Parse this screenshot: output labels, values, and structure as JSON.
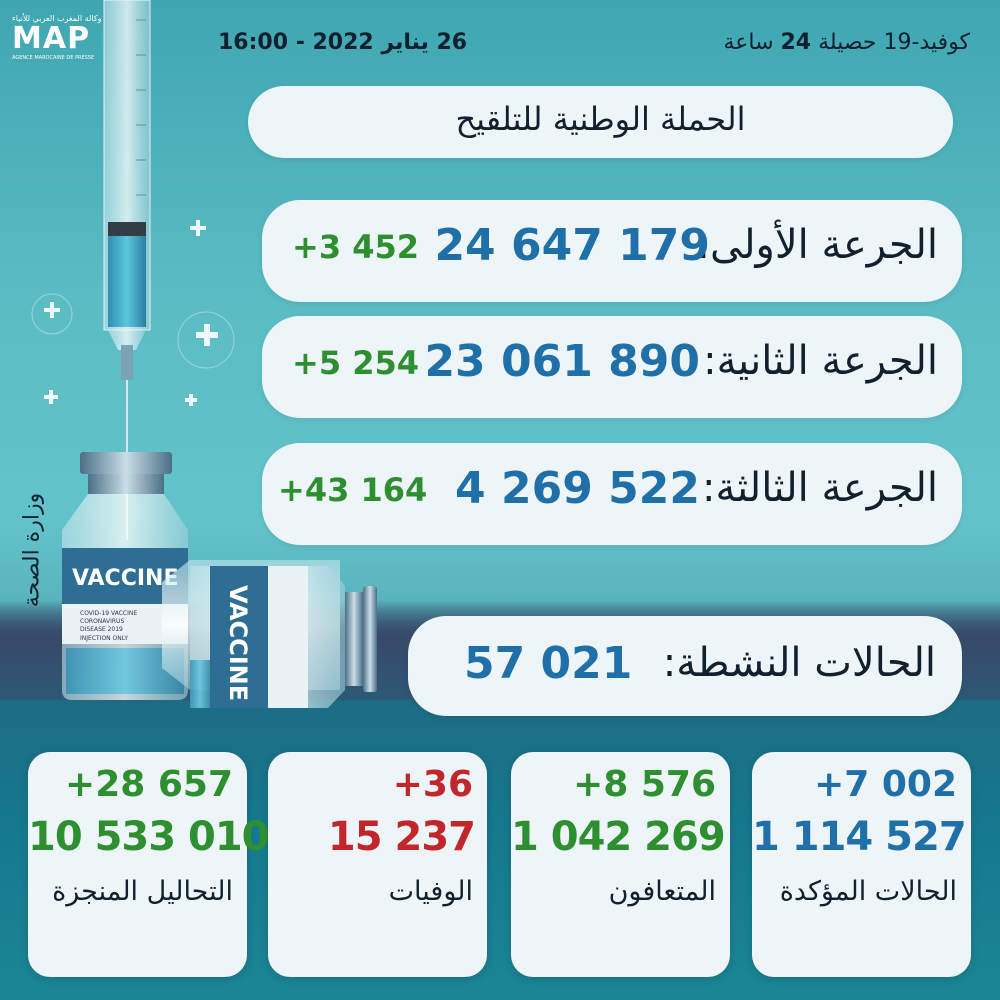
{
  "logo": {
    "arabic": "وكالة المغرب العربي للأنباء",
    "text": "MAP",
    "subtitle": "AGENCE MAROCAINE DE PRESSE"
  },
  "header": {
    "date": "26 يناير 2022 - 16:00",
    "covid_prefix": "كوفيد-19  حصيلة",
    "covid_hours": "24",
    "covid_suffix": "ساعة"
  },
  "campaign_title": "الحملة الوطنية للتلقيح",
  "doses": [
    {
      "label": "الجرعة الأولى:",
      "value": "24 647 179",
      "delta": "+3 452"
    },
    {
      "label": "الجرعة الثانية:",
      "value": "23 061 890",
      "delta": "+5 254"
    },
    {
      "label": "الجرعة الثالثة:",
      "value": "4 269 522",
      "delta": "+43 164"
    }
  ],
  "active_cases": {
    "label": "الحالات النشطة:",
    "value": "57 021"
  },
  "cards": {
    "confirmed": {
      "delta": "+7 002",
      "value": "1 114 527",
      "label": "الحالات المؤكدة"
    },
    "recovered": {
      "delta": "+8 576",
      "value": "1 042 269",
      "label": "المتعافون"
    },
    "deaths": {
      "delta": "+36",
      "value": "15 237",
      "label": "الوفيات"
    },
    "tests": {
      "delta": "+28 657",
      "value": "10 533 010",
      "label": "التحاليل المنجزة"
    }
  },
  "ministry": "وزارة الصحة",
  "vial_text": "VACCINE",
  "vial_small": [
    "COVID-19 VACCINE",
    "CORONAVIRUS",
    "DISEASE 2019",
    "INJECTION ONLY"
  ],
  "colors": {
    "value_blue": "#1f6fa8",
    "delta_green": "#2d8f2f",
    "deaths_red": "#c0262a",
    "tests_green": "#2d8f2f",
    "pill_bg": "#eef5f8"
  }
}
